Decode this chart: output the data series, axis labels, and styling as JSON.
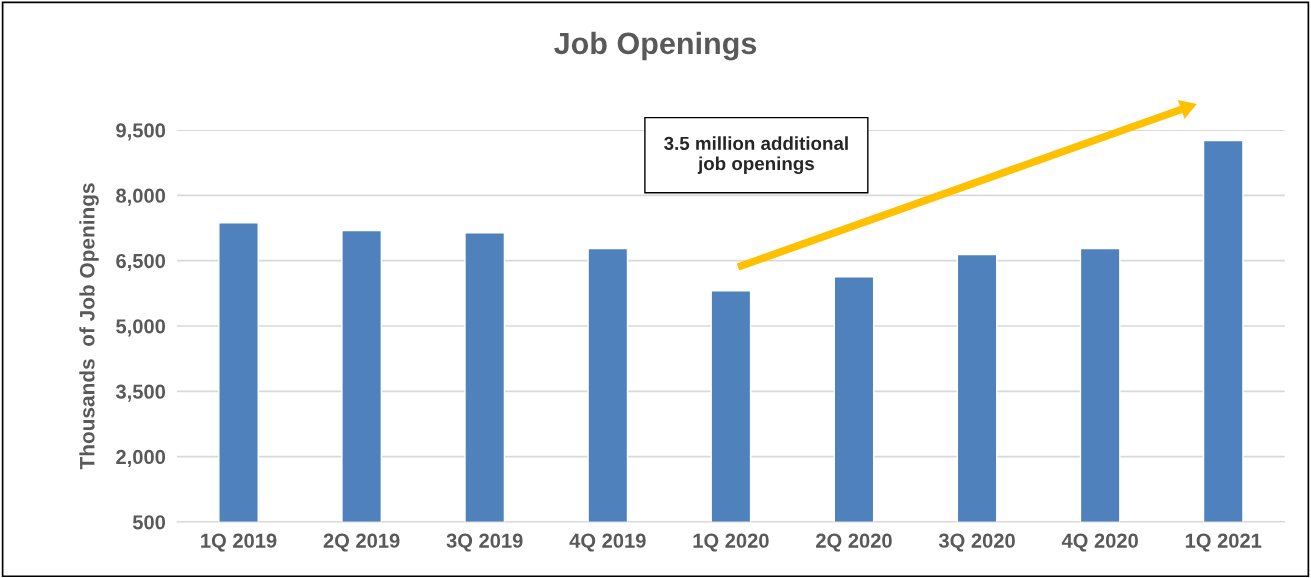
{
  "chart_data": {
    "type": "bar",
    "title": "Job Openings",
    "ylabel": "Thousands  of Job Openings",
    "categories": [
      "1Q 2019",
      "2Q 2019",
      "3Q 2019",
      "4Q 2019",
      "1Q 2020",
      "2Q 2020",
      "3Q 2020",
      "4Q 2020",
      "1Q 2021"
    ],
    "values": [
      7370,
      7190,
      7140,
      6780,
      5810,
      6130,
      6640,
      6780,
      9260
    ],
    "color": "#4f81bd",
    "ylim": [
      500,
      9500
    ],
    "yticks": [
      {
        "value": 500,
        "label": "500"
      },
      {
        "value": 2000,
        "label": "2,000"
      },
      {
        "value": 3500,
        "label": "3,500"
      },
      {
        "value": 5000,
        "label": "5,000"
      },
      {
        "value": 6500,
        "label": "6,500"
      },
      {
        "value": 8000,
        "label": "8,000"
      },
      {
        "value": 9500,
        "label": "9,500"
      }
    ],
    "grid": "y",
    "annotations": [
      "3.5 million additional\njob openings"
    ]
  }
}
